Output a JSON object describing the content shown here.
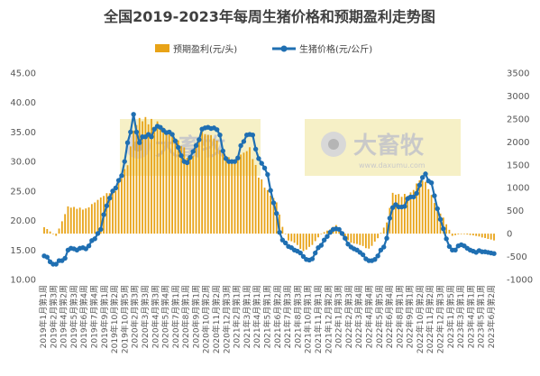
{
  "chart_data": {
    "type": "bar",
    "title": "全国2019-2023年每周生猪价格和预期盈利走势图",
    "legend": {
      "placement": "top",
      "items": [
        {
          "label": "预期盈利(元/头)",
          "kind": "bar",
          "color": "#e8a317"
        },
        {
          "label": "生猪价格(元/公斤)",
          "kind": "line",
          "color": "#1f6fb2"
        }
      ]
    },
    "watermark": "大畜牧",
    "watermark_sub": "www.daxumu.com",
    "grid": false,
    "left_axis": {
      "min": 10,
      "max": 45,
      "ticks": [
        "10.00",
        "15.00",
        "20.00",
        "25.00",
        "30.00",
        "35.00",
        "40.00",
        "45.00"
      ]
    },
    "right_axis": {
      "min": -1000,
      "max": 3500,
      "ticks": [
        "-1000",
        "-500",
        "0",
        "500",
        "1000",
        "1500",
        "2000",
        "2500",
        "3000",
        "3500"
      ]
    },
    "x_labels": [
      "2019年1月第1周",
      "2019年2月第3周",
      "2019年4月第2周",
      "2019年5月第3周",
      "2019年6月第4周",
      "2019年7月第4周",
      "2019年9月第1周",
      "2019年10月第2周",
      "2019年10月第5周",
      "2020年2月第3周",
      "2020年3月第3周",
      "2020年4月第3周",
      "2020年5月第4周",
      "2020年7月第1周",
      "2020年8月第1周",
      "2020年9月第1周",
      "2020年10月第2周",
      "2020年11月第2周",
      "2020年12月第3周",
      "2021年2月第1周",
      "2021年3月第1周",
      "2021年4月第1周",
      "2021年5月第1周",
      "2021年6月第2周",
      "2021年7月第3周",
      "2021年8月第3周",
      "2021年10月第1周",
      "2021年11月第1周",
      "2021年12月第2周",
      "2022年1月第3周",
      "2022年2月第3周",
      "2022年3月第4周",
      "2022年4月第4周",
      "2022年5月第5周",
      "2022年6月第4周",
      "2022年8月第1周",
      "2022年9月第1周",
      "2022年10月第2周",
      "2022年11月第2周",
      "2022年12月第3周",
      "2023年1月第5周",
      "2023年3月第1周",
      "2023年4月第1周",
      "2023年5月第1周",
      "2023年6月第2周"
    ],
    "price_series": {
      "name": "生猪价格(元/公斤)",
      "axis": "left",
      "points": [
        [
          0,
          14.0
        ],
        [
          1,
          13.8
        ],
        [
          2,
          13.0
        ],
        [
          3,
          12.6
        ],
        [
          4,
          12.6
        ],
        [
          5,
          13.2
        ],
        [
          6,
          13.2
        ],
        [
          7,
          13.6
        ],
        [
          8,
          15.0
        ],
        [
          9,
          15.3
        ],
        [
          10,
          15.2
        ],
        [
          11,
          15.0
        ],
        [
          12,
          15.3
        ],
        [
          13,
          15.4
        ],
        [
          14,
          15.2
        ],
        [
          15,
          15.7
        ],
        [
          16,
          16.6
        ],
        [
          17,
          16.9
        ],
        [
          18,
          17.8
        ],
        [
          19,
          18.5
        ],
        [
          20,
          21.0
        ],
        [
          21,
          22.5
        ],
        [
          22,
          23.8
        ],
        [
          23,
          25.0
        ],
        [
          24,
          25.5
        ],
        [
          25,
          26.8
        ],
        [
          26,
          27.6
        ],
        [
          27,
          30.0
        ],
        [
          28,
          33.2
        ],
        [
          29,
          35.0
        ],
        [
          30,
          38.0
        ],
        [
          31,
          35.0
        ],
        [
          32,
          33.2
        ],
        [
          33,
          34.2
        ],
        [
          34,
          34.2
        ],
        [
          35,
          34.6
        ],
        [
          36,
          34.2
        ],
        [
          37,
          35.5
        ],
        [
          38,
          36.0
        ],
        [
          39,
          35.8
        ],
        [
          40,
          35.3
        ],
        [
          41,
          34.9
        ],
        [
          42,
          35.0
        ],
        [
          43,
          34.6
        ],
        [
          44,
          33.5
        ],
        [
          45,
          32.4
        ],
        [
          46,
          31.0
        ],
        [
          47,
          30.0
        ],
        [
          48,
          29.8
        ],
        [
          49,
          30.7
        ],
        [
          50,
          31.7
        ],
        [
          51,
          32.7
        ],
        [
          52,
          33.7
        ],
        [
          53,
          35.5
        ],
        [
          54,
          35.7
        ],
        [
          55,
          35.8
        ],
        [
          56,
          35.6
        ],
        [
          57,
          35.7
        ],
        [
          58,
          35.4
        ],
        [
          59,
          34.5
        ],
        [
          60,
          31.8
        ],
        [
          61,
          30.5
        ],
        [
          62,
          30.0
        ],
        [
          63,
          30.0
        ],
        [
          64,
          30.0
        ],
        [
          65,
          30.6
        ],
        [
          66,
          32.7
        ],
        [
          67,
          33.4
        ],
        [
          68,
          34.5
        ],
        [
          69,
          34.6
        ],
        [
          70,
          34.5
        ],
        [
          71,
          32.1
        ],
        [
          72,
          30.5
        ],
        [
          73,
          29.7
        ],
        [
          74,
          28.9
        ],
        [
          75,
          27.8
        ],
        [
          76,
          25.1
        ],
        [
          77,
          23.0
        ],
        [
          78,
          21.2
        ],
        [
          79,
          18.0
        ],
        [
          80,
          16.7
        ],
        [
          81,
          16.2
        ],
        [
          82,
          15.6
        ],
        [
          83,
          15.4
        ],
        [
          84,
          15.0
        ],
        [
          85,
          14.8
        ],
        [
          86,
          14.5
        ],
        [
          87,
          13.9
        ],
        [
          88,
          13.4
        ],
        [
          89,
          13.3
        ],
        [
          90,
          13.5
        ],
        [
          91,
          14.5
        ],
        [
          92,
          15.4
        ],
        [
          93,
          15.8
        ],
        [
          94,
          16.7
        ],
        [
          95,
          17.3
        ],
        [
          96,
          18.0
        ],
        [
          97,
          18.5
        ],
        [
          98,
          18.6
        ],
        [
          99,
          18.5
        ],
        [
          100,
          17.8
        ],
        [
          101,
          17.0
        ],
        [
          102,
          16.0
        ],
        [
          103,
          15.5
        ],
        [
          104,
          15.2
        ],
        [
          105,
          15.0
        ],
        [
          106,
          14.6
        ],
        [
          107,
          14.2
        ],
        [
          108,
          13.5
        ],
        [
          109,
          13.2
        ],
        [
          110,
          13.2
        ],
        [
          111,
          13.4
        ],
        [
          112,
          14.0
        ],
        [
          113,
          15.0
        ],
        [
          114,
          15.5
        ],
        [
          115,
          17.0
        ],
        [
          116,
          20.4
        ],
        [
          117,
          22.2
        ],
        [
          118,
          22.7
        ],
        [
          119,
          22.3
        ],
        [
          120,
          22.3
        ],
        [
          121,
          22.4
        ],
        [
          122,
          23.7
        ],
        [
          123,
          24.0
        ],
        [
          124,
          24.0
        ],
        [
          125,
          24.6
        ],
        [
          126,
          26.0
        ],
        [
          127,
          27.3
        ],
        [
          128,
          27.9
        ],
        [
          129,
          26.7
        ],
        [
          130,
          26.4
        ],
        [
          131,
          24.2
        ],
        [
          132,
          22.0
        ],
        [
          133,
          20.2
        ],
        [
          134,
          18.6
        ],
        [
          135,
          16.9
        ],
        [
          136,
          15.6
        ],
        [
          137,
          15.0
        ],
        [
          138,
          15.0
        ],
        [
          139,
          15.7
        ],
        [
          140,
          15.9
        ],
        [
          141,
          15.7
        ],
        [
          142,
          15.3
        ],
        [
          143,
          15.0
        ],
        [
          144,
          14.8
        ],
        [
          145,
          14.6
        ],
        [
          146,
          14.9
        ],
        [
          147,
          14.7
        ],
        [
          148,
          14.7
        ],
        [
          149,
          14.6
        ],
        [
          150,
          14.5
        ],
        [
          151,
          14.4
        ]
      ]
    },
    "profit_series": {
      "name": "预期盈利(元/头)",
      "axis": "right",
      "key_points": [
        [
          0,
          150
        ],
        [
          4,
          -50
        ],
        [
          8,
          600
        ],
        [
          14,
          550
        ],
        [
          16,
          650
        ],
        [
          20,
          850
        ],
        [
          24,
          1000
        ],
        [
          28,
          1550
        ],
        [
          30,
          2300
        ],
        [
          32,
          2550
        ],
        [
          34,
          2550
        ],
        [
          38,
          2450
        ],
        [
          42,
          2200
        ],
        [
          46,
          2000
        ],
        [
          49,
          1650
        ],
        [
          53,
          2250
        ],
        [
          57,
          2150
        ],
        [
          61,
          1700
        ],
        [
          64,
          1600
        ],
        [
          66,
          1750
        ],
        [
          69,
          1900
        ],
        [
          72,
          1300
        ],
        [
          75,
          950
        ],
        [
          78,
          700
        ],
        [
          80,
          150
        ],
        [
          82,
          -150
        ],
        [
          84,
          -200
        ],
        [
          87,
          -400
        ],
        [
          90,
          -250
        ],
        [
          93,
          0
        ],
        [
          96,
          100
        ],
        [
          98,
          200
        ],
        [
          100,
          -50
        ],
        [
          103,
          -200
        ],
        [
          106,
          -250
        ],
        [
          109,
          -350
        ],
        [
          112,
          -100
        ],
        [
          115,
          250
        ],
        [
          117,
          900
        ],
        [
          120,
          850
        ],
        [
          123,
          900
        ],
        [
          126,
          1200
        ],
        [
          128,
          1150
        ],
        [
          131,
          700
        ],
        [
          134,
          350
        ],
        [
          137,
          -50
        ],
        [
          140,
          0
        ],
        [
          145,
          -50
        ],
        [
          151,
          -150
        ]
      ]
    }
  }
}
